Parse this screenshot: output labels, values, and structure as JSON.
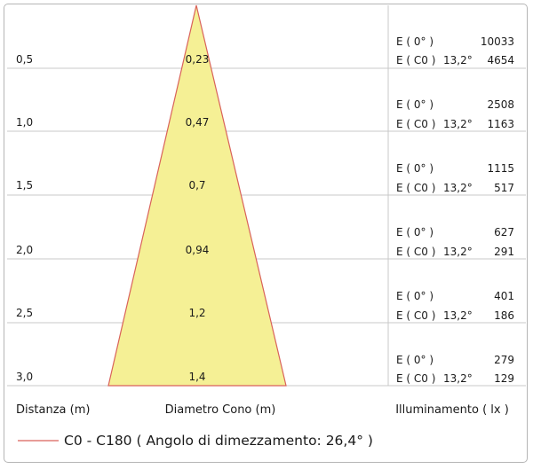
{
  "colors": {
    "cone_fill": "#f5f095",
    "cone_stroke": "#d9625a",
    "grid_line": "#c8c8c8"
  },
  "rows": [
    {
      "distance": "0,5",
      "diameter": "0,23",
      "e0_label": "E ( 0° )",
      "e0_value": "10033",
      "ec0_label": "E ( C0 )",
      "angle": "13,2°",
      "ec0_value": "4654"
    },
    {
      "distance": "1,0",
      "diameter": "0,47",
      "e0_label": "E ( 0° )",
      "e0_value": "2508",
      "ec0_label": "E ( C0 )",
      "angle": "13,2°",
      "ec0_value": "1163"
    },
    {
      "distance": "1,5",
      "diameter": "0,7",
      "e0_label": "E ( 0° )",
      "e0_value": "1115",
      "ec0_label": "E ( C0 )",
      "angle": "13,2°",
      "ec0_value": "517"
    },
    {
      "distance": "2,0",
      "diameter": "0,94",
      "e0_label": "E ( 0° )",
      "e0_value": "627",
      "ec0_label": "E ( C0 )",
      "angle": "13,2°",
      "ec0_value": "291"
    },
    {
      "distance": "2,5",
      "diameter": "1,2",
      "e0_label": "E ( 0° )",
      "e0_value": "401",
      "ec0_label": "E ( C0 )",
      "angle": "13,2°",
      "ec0_value": "186"
    },
    {
      "distance": "3,0",
      "diameter": "1,4",
      "e0_label": "E ( 0° )",
      "e0_value": "279",
      "ec0_label": "E ( C0 )",
      "angle": "13,2°",
      "ec0_value": "129"
    }
  ],
  "footer": {
    "distance_header": "Distanza (m)",
    "diameter_header": "Diametro Cono (m)",
    "illuminance_header": "Illuminamento ( lx )"
  },
  "legend": {
    "label": "C0 - C180  ( Angolo di dimezzamento: 26,4° )"
  }
}
